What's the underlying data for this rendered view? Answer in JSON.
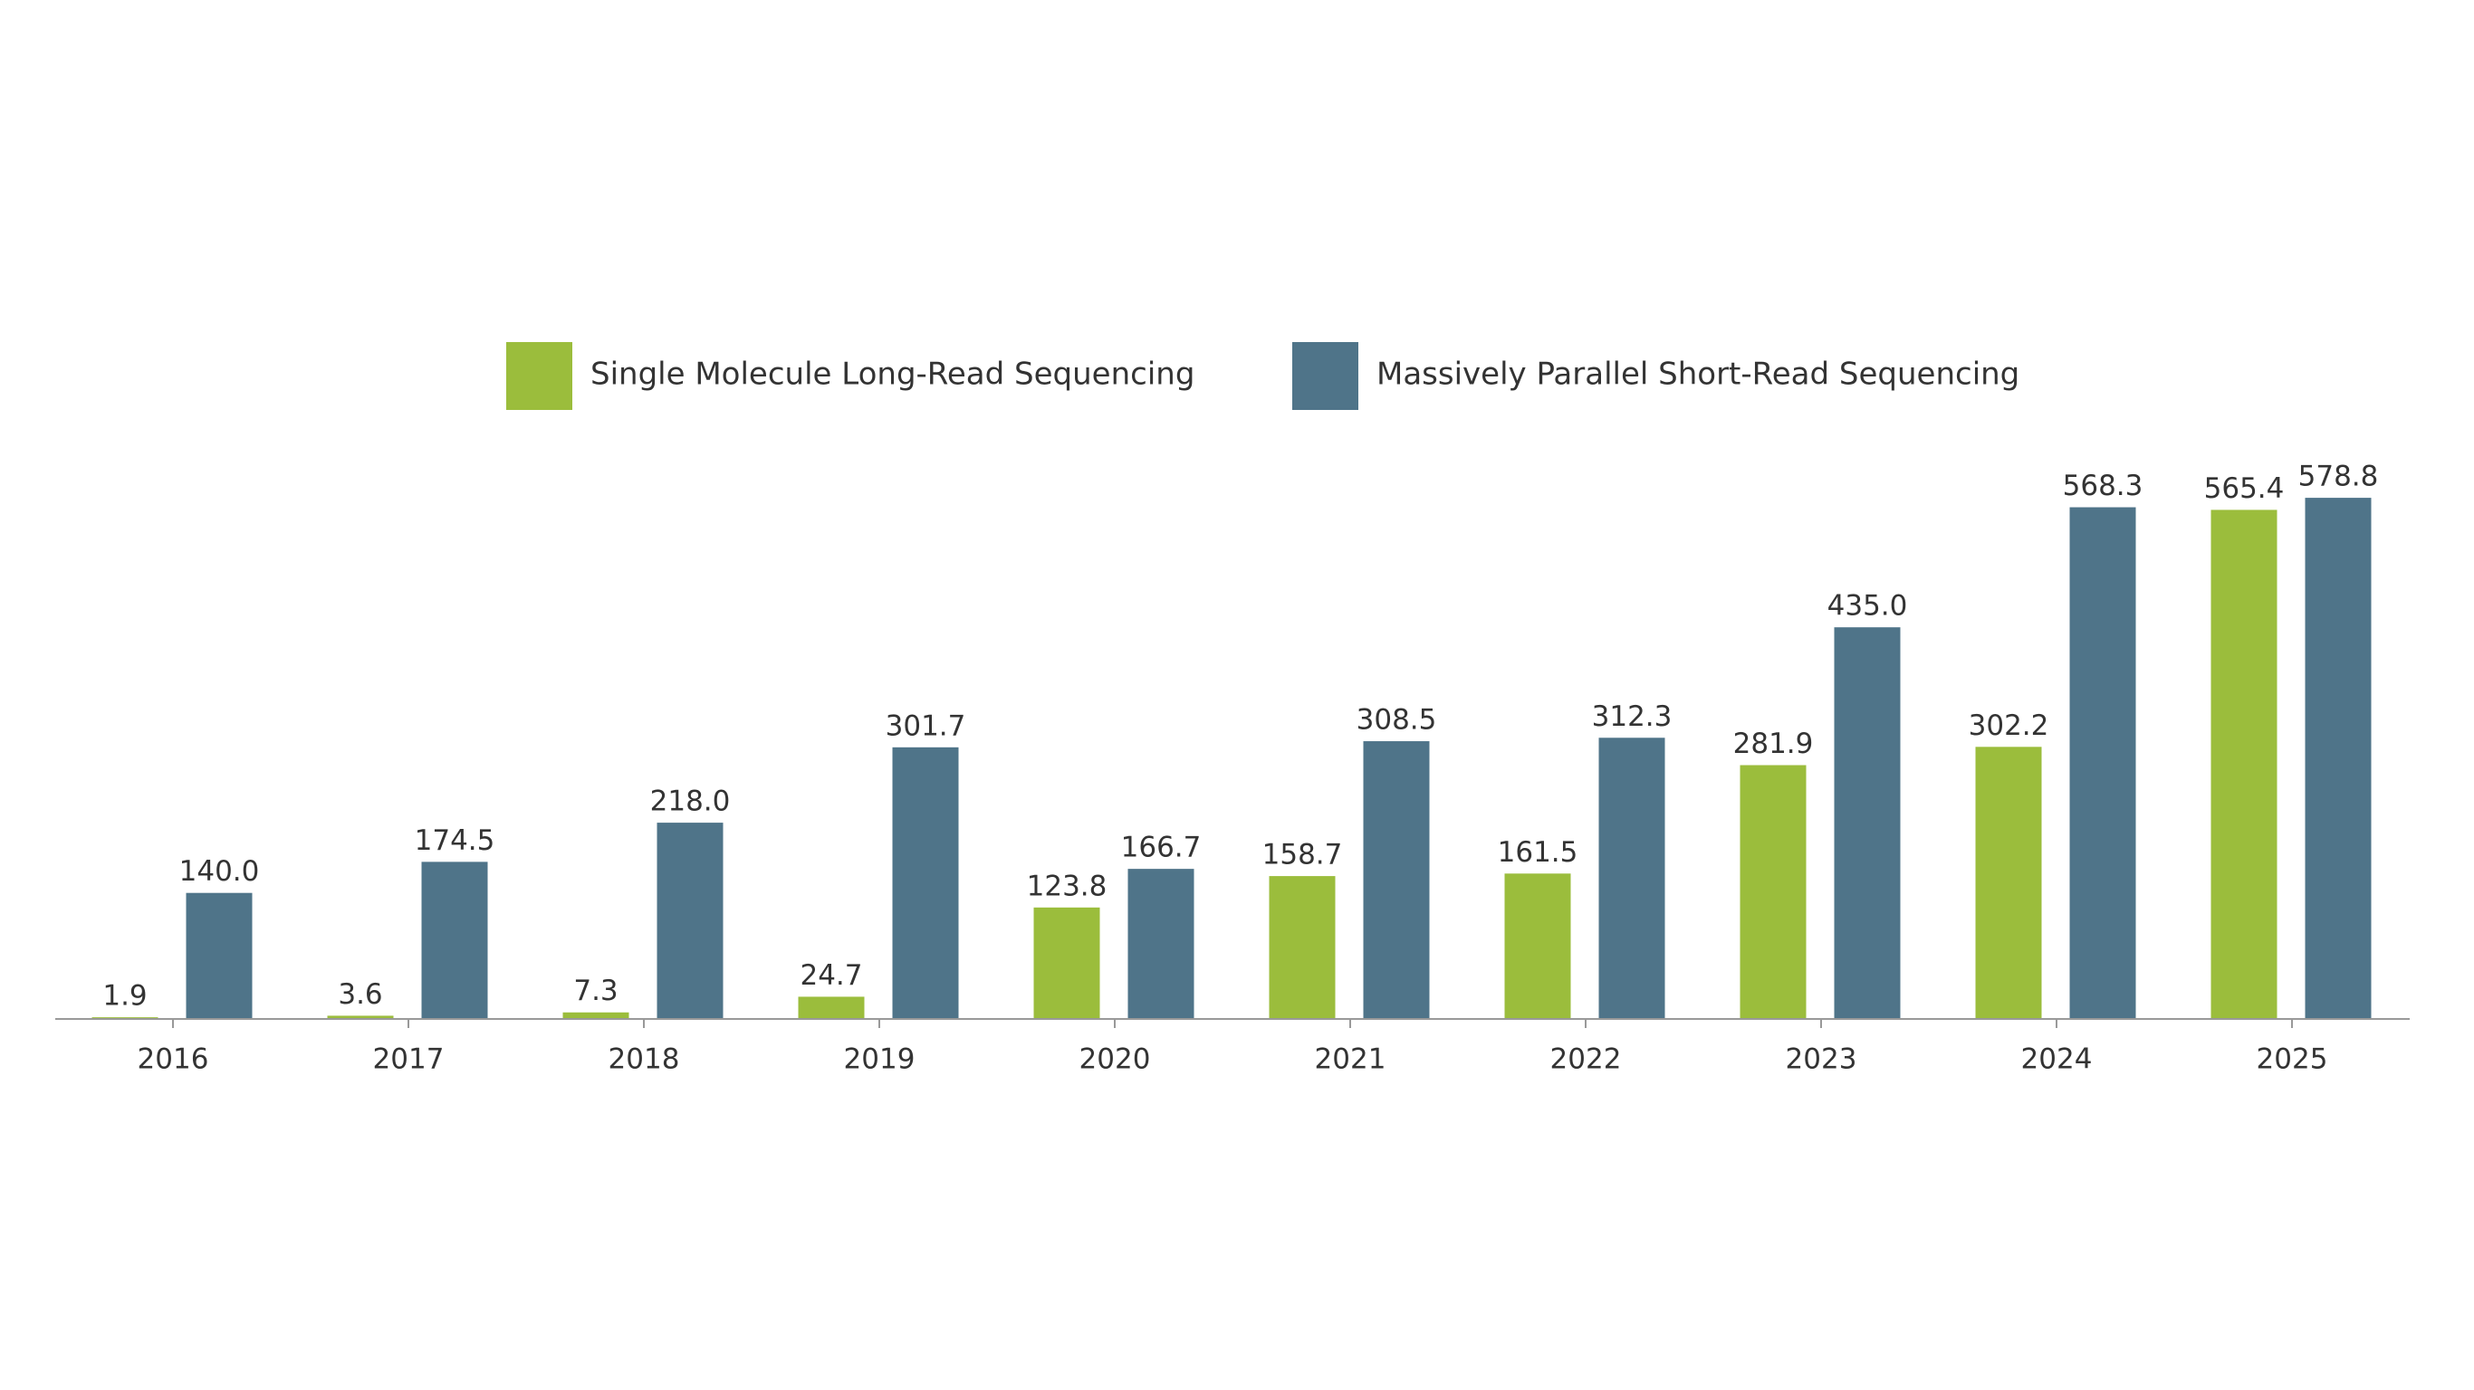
{
  "chart_data": {
    "type": "bar",
    "categories": [
      "2016",
      "2017",
      "2018",
      "2019",
      "2020",
      "2021",
      "2022",
      "2023",
      "2024",
      "2025"
    ],
    "series": [
      {
        "name": "Single Molecule Long-Read Sequencing",
        "color": "#9bbd3c",
        "values": [
          1.9,
          3.6,
          7.3,
          24.7,
          123.8,
          158.7,
          161.5,
          281.9,
          302.2,
          565.4
        ],
        "value_labels": [
          "1.9",
          "3.6",
          "7.3",
          "24.7",
          "123.8",
          "158.7",
          "161.5",
          "281.9",
          "302.2",
          "565.4"
        ]
      },
      {
        "name": "Massively Parallel Short-Read Sequencing",
        "color": "#4f7489",
        "values": [
          140.0,
          174.5,
          218.0,
          301.7,
          166.7,
          308.5,
          312.3,
          435.0,
          568.3,
          578.8
        ],
        "value_labels": [
          "140.0",
          "174.5",
          "218.0",
          "301.7",
          "166.7",
          "308.5",
          "312.3",
          "435.0",
          "568.3",
          "578.8"
        ]
      }
    ],
    "ylim": [
      0,
      600
    ]
  }
}
